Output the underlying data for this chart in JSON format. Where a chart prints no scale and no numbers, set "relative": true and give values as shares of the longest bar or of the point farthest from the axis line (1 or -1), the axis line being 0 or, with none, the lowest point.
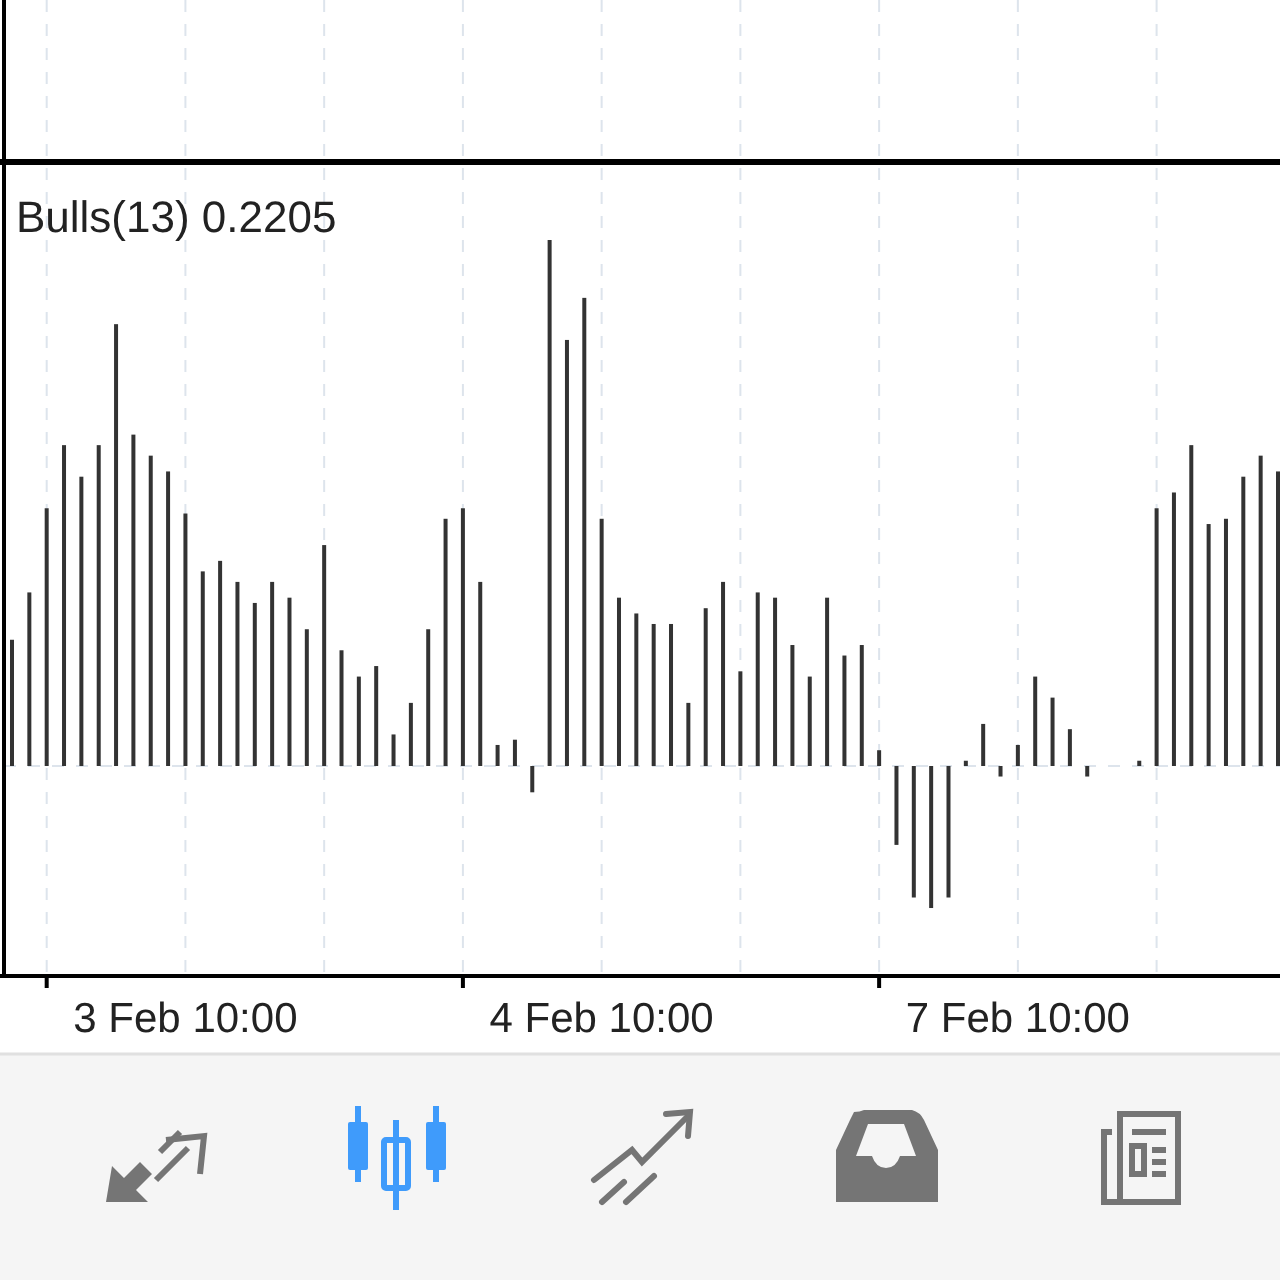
{
  "chart_data": {
    "type": "bar",
    "title": "Bulls(13) 0.2205",
    "relative": true,
    "grid": "x",
    "color": "#333333",
    "categories": [
      null,
      null,
      null,
      null,
      null,
      null,
      null,
      null,
      null,
      null,
      "3 Feb 10:00",
      null,
      null,
      null,
      null,
      null,
      null,
      null,
      null,
      null,
      null,
      null,
      null,
      null,
      null,
      null,
      null,
      null,
      null,
      null,
      null,
      null,
      null,
      null,
      "4 Feb 10:00",
      null,
      null,
      null,
      null,
      null,
      null,
      null,
      null,
      null,
      null,
      null,
      null,
      null,
      null,
      null,
      null,
      null,
      null,
      null,
      null,
      null,
      null,
      null,
      "7 Feb 10:00",
      null,
      null,
      null,
      null,
      null,
      null,
      null,
      null,
      null,
      null,
      null,
      null,
      null,
      null,
      null
    ],
    "values": [
      0.24,
      0.33,
      0.49,
      0.61,
      0.55,
      0.61,
      0.84,
      0.63,
      0.59,
      0.56,
      0.48,
      0.37,
      0.39,
      0.35,
      0.31,
      0.35,
      0.32,
      0.26,
      0.42,
      0.22,
      0.17,
      0.19,
      0.06,
      0.12,
      0.26,
      0.47,
      0.49,
      0.35,
      0.04,
      0.05,
      -0.05,
      1,
      0.81,
      0.89,
      0.47,
      0.32,
      0.29,
      0.27,
      0.27,
      0.12,
      0.3,
      0.35,
      0.18,
      0.33,
      0.32,
      0.23,
      0.17,
      0.32,
      0.21,
      0.23,
      0.03,
      -0.15,
      -0.25,
      -0.27,
      -0.25,
      0.01,
      0.08,
      -0.02,
      0.04,
      0.17,
      0.13,
      0.07,
      -0.02,
      0,
      0,
      0.01,
      0.49,
      0.52,
      0.61,
      0.46,
      0.47,
      0.55,
      0.59,
      0.56
    ]
  }
}
